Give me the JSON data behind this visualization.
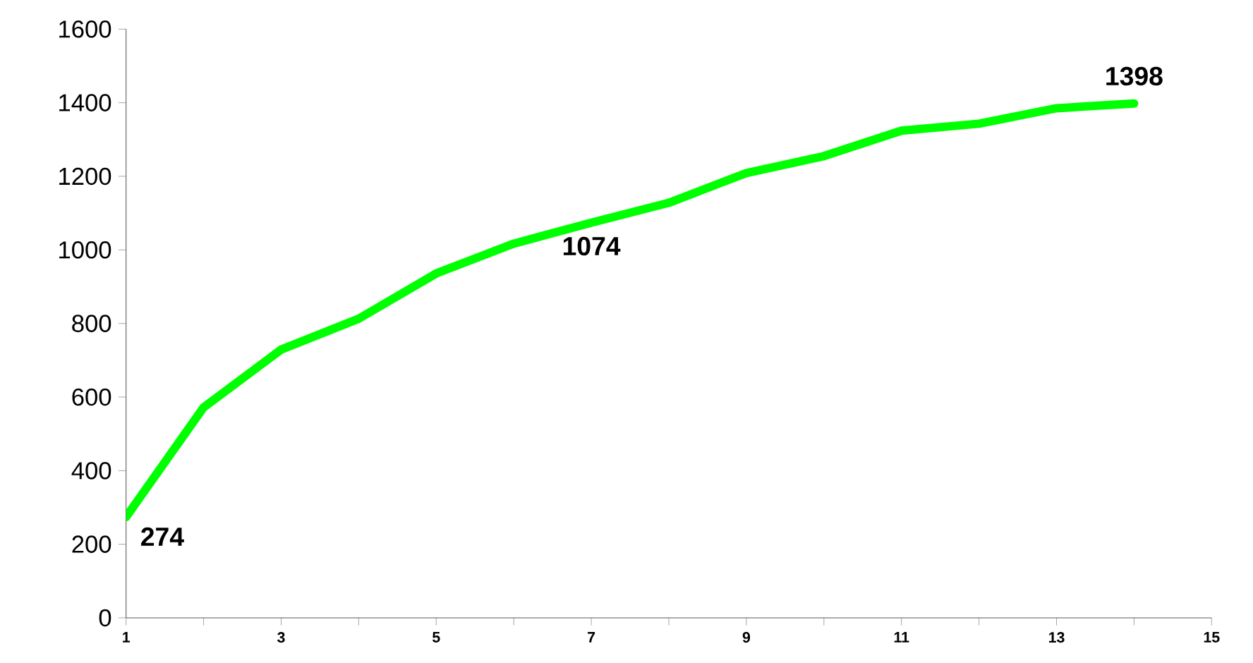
{
  "chart_data": {
    "type": "line",
    "x": [
      1,
      2,
      3,
      4,
      5,
      6,
      7,
      8,
      9,
      10,
      11,
      12,
      13,
      14
    ],
    "series": [
      {
        "color": "#00ff00",
        "values": [
          274,
          572,
          729,
          813,
          936,
          1017,
          1074,
          1128,
          1209,
          1255,
          1324,
          1343,
          1385,
          1398
        ],
        "value_labels": [
          "274",
          null,
          null,
          null,
          null,
          null,
          "1074",
          null,
          null,
          null,
          null,
          null,
          null,
          "1398"
        ]
      }
    ],
    "xlim": [
      1,
      15
    ],
    "xticks": [
      1,
      {
        "value": 2,
        "label": null
      },
      3,
      {
        "value": 4,
        "label": null
      },
      5,
      {
        "value": 6,
        "label": null
      },
      7,
      {
        "value": 8,
        "label": null
      },
      9,
      {
        "value": 10,
        "label": null
      },
      11,
      {
        "value": 12,
        "label": null
      },
      13,
      {
        "value": 14,
        "label": null
      },
      15
    ],
    "ylim": [
      0,
      1600
    ],
    "yticks": [
      0,
      200,
      400,
      600,
      800,
      1000,
      1200,
      1400,
      1600
    ],
    "grid": false,
    "marker": "none",
    "line_style": "solid"
  }
}
